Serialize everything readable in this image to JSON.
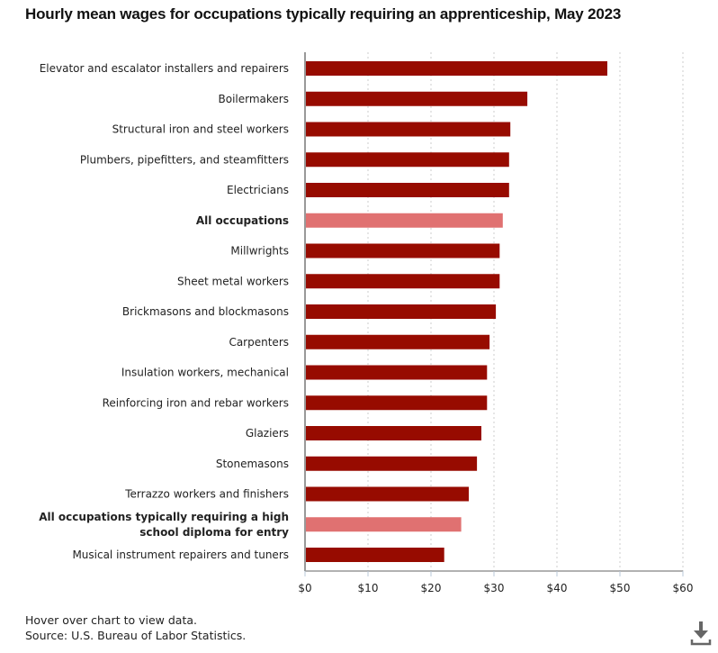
{
  "chart_data": {
    "type": "bar",
    "orientation": "horizontal",
    "title": "Hourly mean wages for occupations typically requiring an apprenticeship, May 2023",
    "xlabel": "",
    "ylabel": "",
    "xlim": [
      0,
      60
    ],
    "x_ticks": [
      0,
      10,
      20,
      30,
      40,
      50,
      60
    ],
    "x_tick_labels": [
      "$0",
      "$10",
      "$20",
      "$30",
      "$40",
      "$50",
      "$60"
    ],
    "grid": "vertical dotted",
    "categories": [
      "Elevator and escalator installers and repairers",
      "Boilermakers",
      "Structural iron and steel workers",
      "Plumbers, pipefitters, and steamfitters",
      "Electricians",
      "All occupations",
      "Millwrights",
      "Sheet metal workers",
      "Brickmasons and blockmasons",
      "Carpenters",
      "Insulation workers, mechanical",
      "Reinforcing iron and rebar workers",
      "Glaziers",
      "Stonemasons",
      "Terrazzo workers and finishers",
      "All occupations typically requiring a high school diploma for entry",
      "Musical instrument repairers and tuners"
    ],
    "category_label_lines": [
      [
        "Elevator and escalator installers and repairers"
      ],
      [
        "Boilermakers"
      ],
      [
        "Structural iron and steel workers"
      ],
      [
        "Plumbers, pipefitters, and steamfitters"
      ],
      [
        "Electricians"
      ],
      [
        "All occupations"
      ],
      [
        "Millwrights"
      ],
      [
        "Sheet metal workers"
      ],
      [
        "Brickmasons and blockmasons"
      ],
      [
        "Carpenters"
      ],
      [
        "Insulation workers, mechanical"
      ],
      [
        "Reinforcing iron and rebar workers"
      ],
      [
        "Glaziers"
      ],
      [
        "Stonemasons"
      ],
      [
        "Terrazzo workers and finishers"
      ],
      [
        "All occupations typically requiring a high",
        "school diploma for entry"
      ],
      [
        "Musical instrument repairers and tuners"
      ]
    ],
    "values": [
      48.0,
      35.3,
      32.6,
      32.4,
      32.4,
      31.4,
      30.9,
      30.9,
      30.3,
      29.3,
      28.9,
      28.9,
      28.0,
      27.3,
      26.0,
      24.8,
      22.1
    ],
    "highlight": [
      false,
      false,
      false,
      false,
      false,
      true,
      false,
      false,
      false,
      false,
      false,
      false,
      false,
      false,
      false,
      true,
      false
    ],
    "colors": {
      "bar": "#970b00",
      "highlight": "#e07171",
      "grid": "#cccccc",
      "axis": "#999999"
    }
  },
  "footer": {
    "hover_note": "Hover over chart to view data.",
    "source": "Source: U.S. Bureau of Labor Statistics."
  },
  "download_icon": "download-icon"
}
